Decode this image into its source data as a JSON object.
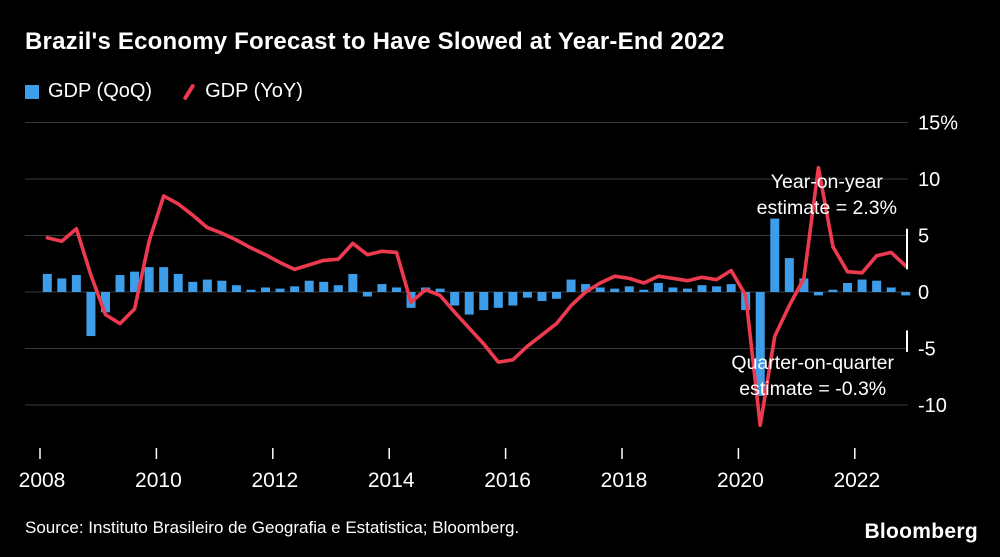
{
  "header": {
    "title": "Brazil's Economy Forecast to Have Slowed at Year-End 2022"
  },
  "legend": [
    {
      "label": "GDP (QoQ)",
      "marker": "square",
      "color": "#3e9de9"
    },
    {
      "label": "GDP (YoY)",
      "marker": "slash",
      "color": "#ed3a4f"
    }
  ],
  "annotations": [
    {
      "lines": [
        "Year-on-year",
        "estimate = 2.3%"
      ]
    },
    {
      "lines": [
        "Quarter-on-quarter",
        "estimate = -0.3%"
      ]
    }
  ],
  "source": "Source: Instituto Brasileiro de Geografia e Estatistica; Bloomberg.",
  "brand": "Bloomberg",
  "chart_data": {
    "type": "bar",
    "subtype": "combo-bar-line",
    "title": "Brazil's Economy Forecast to Have Slowed at Year-End 2022",
    "background": "#000000",
    "text_color": "#ffffff",
    "grid_color": "#3a3a3a",
    "x_unit": "quarter",
    "x_start_year": 2008,
    "x_tick_years": [
      2008,
      2010,
      2012,
      2014,
      2016,
      2018,
      2020,
      2022
    ],
    "y_ticks": [
      15,
      10,
      5,
      0,
      -5,
      -10
    ],
    "y_tick_labels": [
      "15%",
      "10",
      "5",
      "0",
      "-5",
      "-10"
    ],
    "ylim": [
      -13,
      16
    ],
    "legend_position": "top-left",
    "grid": true,
    "series": [
      {
        "name": "GDP (QoQ)",
        "type": "bar",
        "color": "#3e9de9",
        "values": [
          1.6,
          1.2,
          1.5,
          -3.9,
          -1.8,
          1.5,
          1.8,
          2.2,
          2.2,
          1.6,
          0.9,
          1.1,
          1.0,
          0.6,
          0.2,
          0.4,
          0.3,
          0.5,
          1.0,
          0.9,
          0.6,
          1.6,
          -0.4,
          0.7,
          0.4,
          -1.4,
          0.4,
          0.3,
          -1.2,
          -2.0,
          -1.6,
          -1.4,
          -1.2,
          -0.5,
          -0.8,
          -0.6,
          1.1,
          0.7,
          0.4,
          0.3,
          0.5,
          0.2,
          0.8,
          0.4,
          0.3,
          0.6,
          0.5,
          0.7,
          -1.6,
          -9.2,
          6.5,
          3.0,
          1.2,
          -0.3,
          0.2,
          0.8,
          1.1,
          1.0,
          0.4,
          -0.3
        ]
      },
      {
        "name": "GDP (YoY)",
        "type": "line",
        "color": "#ed3a4f",
        "values": [
          4.8,
          4.5,
          5.6,
          1.5,
          -2.0,
          -2.8,
          -1.5,
          4.5,
          8.5,
          7.8,
          6.8,
          5.7,
          5.2,
          4.6,
          3.9,
          3.3,
          2.6,
          2.0,
          2.4,
          2.8,
          2.9,
          4.3,
          3.3,
          3.6,
          3.5,
          -0.9,
          0.2,
          -0.3,
          -1.8,
          -3.2,
          -4.6,
          -6.2,
          -6.0,
          -4.8,
          -3.8,
          -2.8,
          -1.2,
          0.0,
          0.8,
          1.4,
          1.2,
          0.8,
          1.4,
          1.2,
          1.0,
          1.3,
          1.1,
          1.9,
          -0.3,
          -11.8,
          -3.9,
          -1.2,
          1.2,
          11.0,
          4.0,
          1.8,
          1.7,
          3.2,
          3.5,
          2.3
        ]
      }
    ],
    "estimate_labels": [
      {
        "series": "GDP (YoY)",
        "text": "Year-on-year estimate = 2.3%",
        "value": 2.3
      },
      {
        "series": "GDP (QoQ)",
        "text": "Quarter-on-quarter estimate = -0.3%",
        "value": -0.3
      }
    ],
    "right_edge_markers": [
      {
        "from": 2.0,
        "to": 5.6
      },
      {
        "from": -5.3,
        "to": -3.4
      }
    ]
  }
}
